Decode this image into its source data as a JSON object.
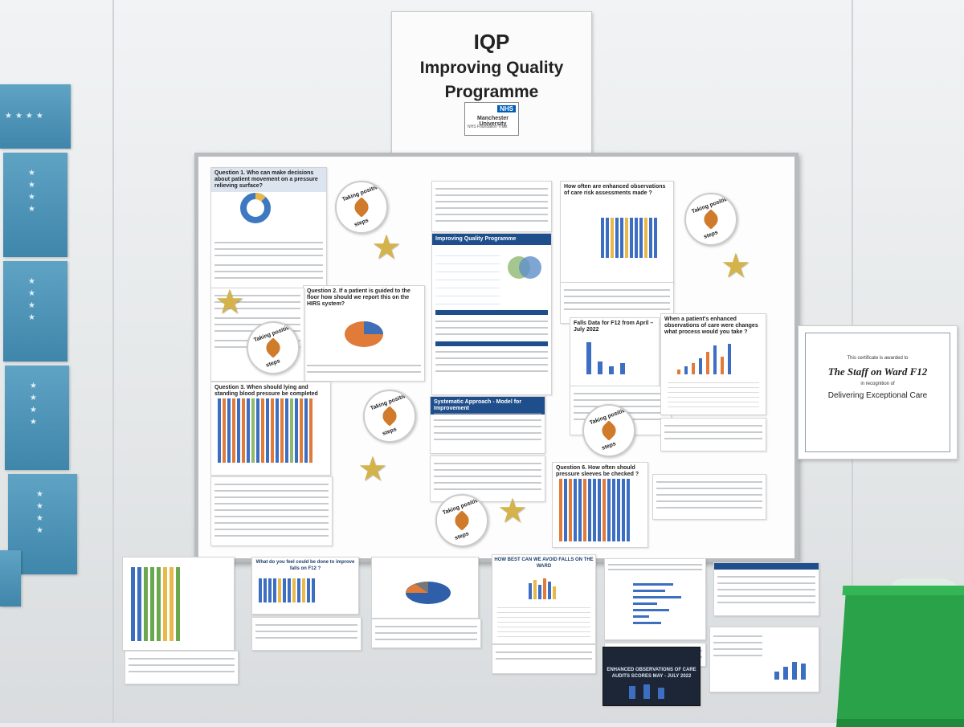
{
  "sign": {
    "abbr": "IQP",
    "title_line1": "Improving Quality",
    "title_line2": "Programme",
    "nhs_logo": "NHS",
    "nhs_org": "Manchester University",
    "nhs_trust": "NHS Foundation Trust"
  },
  "badges": {
    "top_text": "Taking positive",
    "bottom_text": "steps"
  },
  "board_titles": {
    "q1": "Question 1. Who can make decisions about patient movement on a pressure relieving surface?",
    "q2": "Question 2. If a patient is guided to the floor how should we report this on the HIRS system?",
    "iqp_title": "Improving Quality Programme",
    "falls": "Falls Data for F12 from April – July 2022",
    "obs": "How often are enhanced observations of care risk assessments made ?",
    "when_enhanced": "When a patient's enhanced observations of care were changes what process would you take ?",
    "q3": "Question 3. When should lying and standing blood pressure be completed",
    "systematic": "Systematic Approach - Model for Improvement",
    "q6": "Question 6. How often should pressure sleeves be checked ?"
  },
  "lower_titles": {
    "improve_falls": "What do you feel could be done to improve falls on F12 ?",
    "avoid_falls": "HOW BEST CAN WE AVOID FALLS ON THE WARD",
    "enhanced_obs": "ENHANCED OBSERVATIONS OF CARE AUDITS SCORES MAY - JULY 2022"
  },
  "certificate": {
    "awarded": "This certificate is awarded to",
    "recipient": "The Staff on Ward F12",
    "recognition": "in recognition of",
    "award": "Delivering Exceptional Care"
  }
}
